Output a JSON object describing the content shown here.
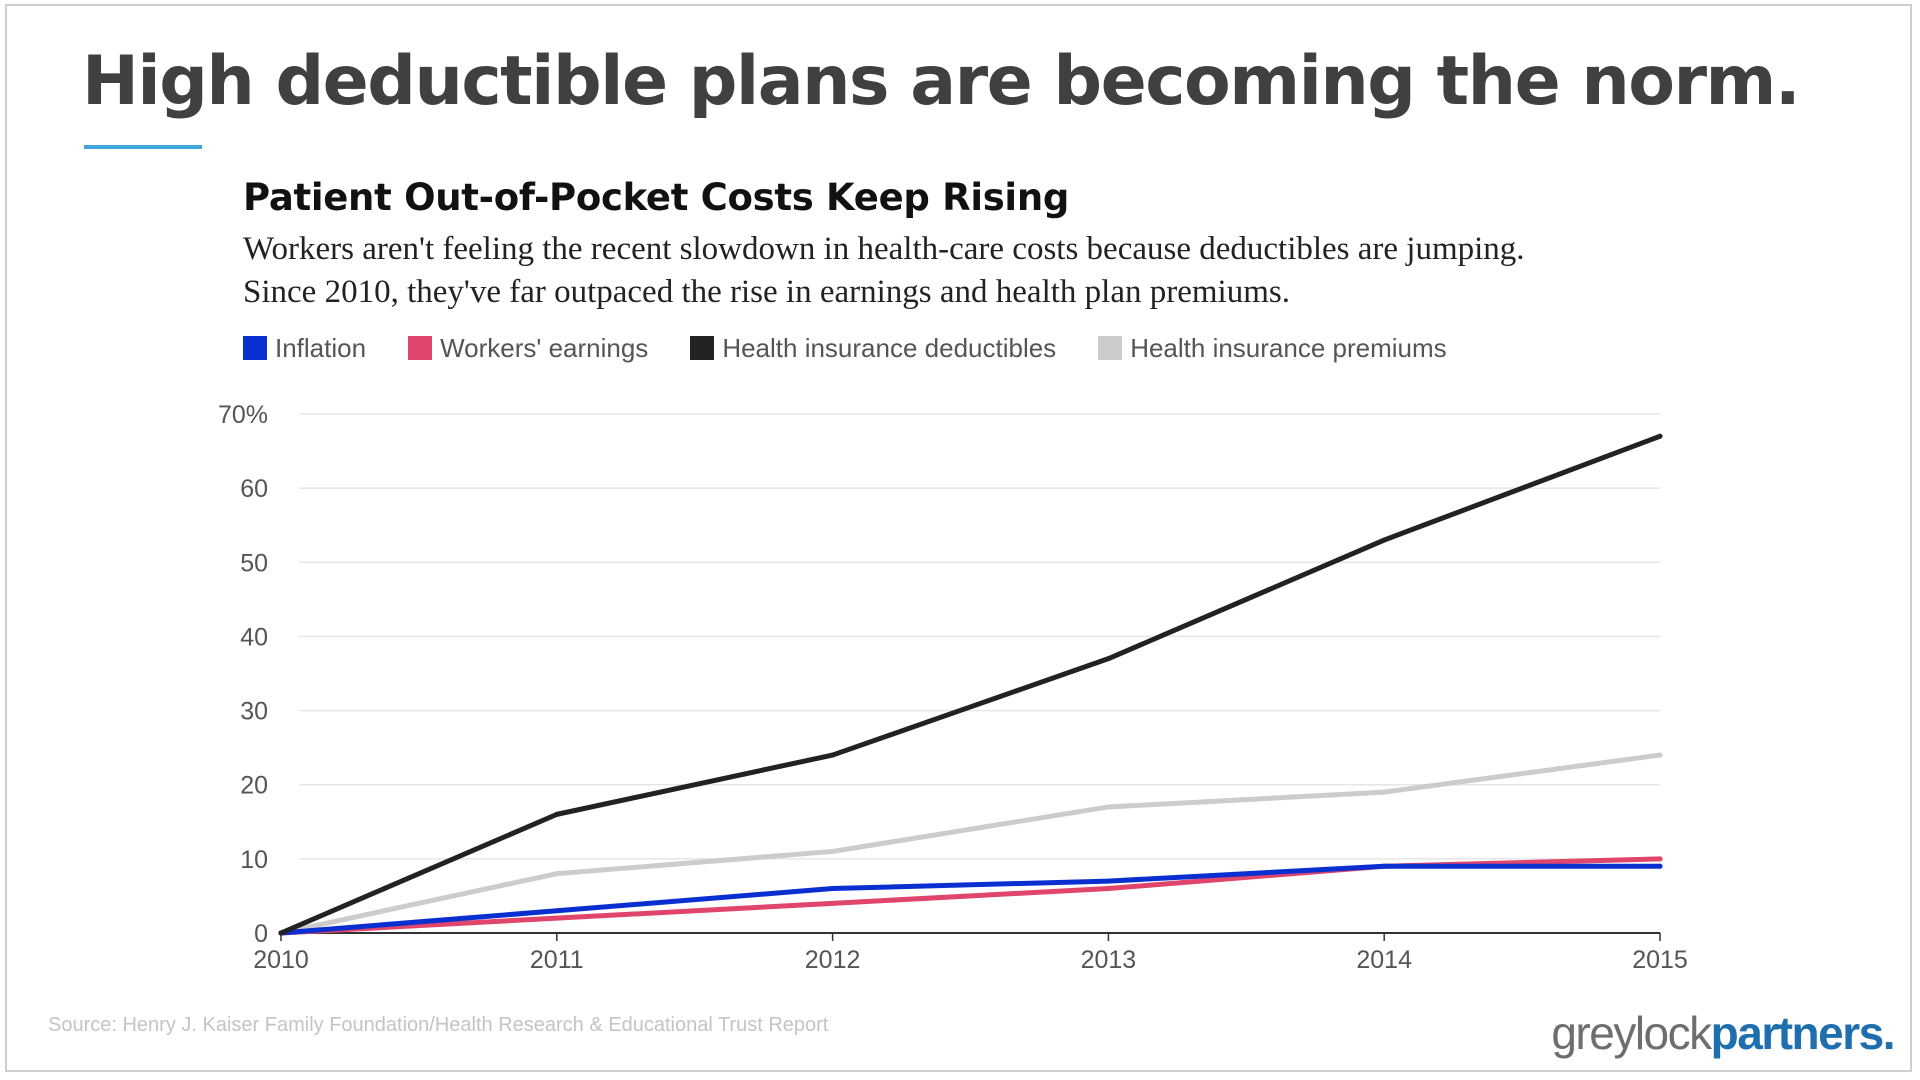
{
  "slide": {
    "title": "High deductible plans are becoming the norm.",
    "accent_color": "#3ea8dc",
    "source": "Source: Henry J. Kaiser Family Foundation/Health Research & Educational Trust Report",
    "logo": {
      "part1": "greylock",
      "part2": "partners.",
      "part1_color": "#6e6e6e",
      "part2_color": "#1f6fae"
    }
  },
  "chart_data": {
    "type": "line",
    "title": "Patient Out-of-Pocket Costs Keep Rising",
    "subtitle_lines": [
      "Workers aren't feeling the recent slowdown in health-care costs because deductibles are jumping.",
      "Since 2010, they've far outpaced the rise in earnings and health plan premiums."
    ],
    "x": [
      2010,
      2011,
      2012,
      2013,
      2014,
      2015
    ],
    "x_tick_labels": [
      "2010",
      "2011",
      "2012",
      "2013",
      "2014",
      "2015"
    ],
    "ylim": [
      0,
      70
    ],
    "y_ticks": [
      0,
      10,
      20,
      30,
      40,
      50,
      60,
      70
    ],
    "y_tick_labels": [
      "0",
      "10",
      "20",
      "30",
      "40",
      "50",
      "60",
      "70%"
    ],
    "grid": true,
    "legend_position": "top-left",
    "series": [
      {
        "name": "Inflation",
        "color": "#0a2fd1",
        "values": [
          0,
          3,
          6,
          7,
          9,
          9
        ]
      },
      {
        "name": "Workers' earnings",
        "color": "#e0456b",
        "values": [
          0,
          2,
          4,
          6,
          9,
          10
        ]
      },
      {
        "name": "Health insurance deductibles",
        "color": "#222222",
        "values": [
          0,
          16,
          24,
          37,
          53,
          67
        ]
      },
      {
        "name": "Health insurance premiums",
        "color": "#cccccc",
        "values": [
          0,
          8,
          11,
          17,
          19,
          24
        ]
      }
    ]
  }
}
